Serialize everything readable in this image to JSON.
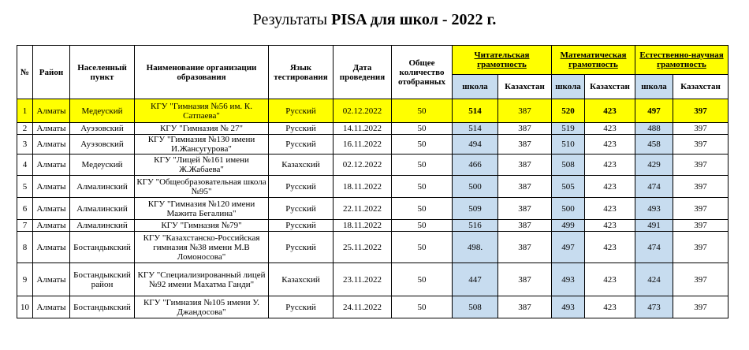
{
  "title": {
    "prefix": "Результаты ",
    "bold": "PISA для школ - 2022 г."
  },
  "headers": {
    "num": "№",
    "district": "Район",
    "locality": "Населенный пункт",
    "org": "Наименование организации образования",
    "lang": "Язык тестирования",
    "date": "Дата проведения",
    "total": "Общее количество отобранных",
    "reading": "Читательская грамотность",
    "math": "Математическая грамотность",
    "science": "Естественно-научная грамотность",
    "school": "школа",
    "kz": "Казахстан"
  },
  "rows": [
    {
      "n": "1",
      "city": "Алматы",
      "district": "Медеуский",
      "org": "КГУ \"Гимназия №56 им. К. Сатпаева\"",
      "lang": "Русский",
      "date": "02.12.2022",
      "total": "50",
      "r1": "514",
      "r2": "387",
      "m1": "520",
      "m2": "423",
      "s1": "497",
      "s2": "397"
    },
    {
      "n": "2",
      "city": "Алматы",
      "district": "Ауэзовский",
      "org": "КГУ \"Гимназия № 27\"",
      "lang": "Русский",
      "date": "14.11.2022",
      "total": "50",
      "r1": "514",
      "r2": "387",
      "m1": "519",
      "m2": "423",
      "s1": "488",
      "s2": "397"
    },
    {
      "n": "3",
      "city": "Алматы",
      "district": "Ауэзовский",
      "org": "КГУ \"Гимназия №130 имени И.Жансугурова\"",
      "lang": "Русский",
      "date": "16.11.2022",
      "total": "50",
      "r1": "494",
      "r2": "387",
      "m1": "510",
      "m2": "423",
      "s1": "458",
      "s2": "397"
    },
    {
      "n": "4",
      "city": "Алматы",
      "district": "Медеуский",
      "org": "КГУ \"Лицей №161 имени Ж.Жабаева\"",
      "lang": "Казахский",
      "date": "02.12.2022",
      "total": "50",
      "r1": "466",
      "r2": "387",
      "m1": "508",
      "m2": "423",
      "s1": "429",
      "s2": "397"
    },
    {
      "n": "5",
      "city": "Алматы",
      "district": "Алмалинский",
      "org": "КГУ \"Общеобразовательная школа №95\"",
      "lang": "Русский",
      "date": "18.11.2022",
      "total": "50",
      "r1": "500",
      "r2": "387",
      "m1": "505",
      "m2": "423",
      "s1": "474",
      "s2": "397"
    },
    {
      "n": "6",
      "city": "Алматы",
      "district": "Алмалинский",
      "org": "КГУ \"Гимназия №120 имени Мажита Бегалина\"",
      "lang": "Русский",
      "date": "22.11.2022",
      "total": "50",
      "r1": "509",
      "r2": "387",
      "m1": "500",
      "m2": "423",
      "s1": "493",
      "s2": "397"
    },
    {
      "n": "7",
      "city": "Алматы",
      "district": "Алмалинский",
      "org": "КГУ \"Гимназия №79\"",
      "lang": "Русский",
      "date": "18.11.2022",
      "total": "50",
      "r1": "516",
      "r2": "387",
      "m1": "499",
      "m2": "423",
      "s1": "491",
      "s2": "397"
    },
    {
      "n": "8",
      "city": "Алматы",
      "district": "Бостандыкский",
      "org": "КГУ \"Казахстанско-Российская гимназия №38 имени М.В Ломоносова\"",
      "lang": "Русский",
      "date": "25.11.2022",
      "total": "50",
      "r1": "498.",
      "r2": "387",
      "m1": "497",
      "m2": "423",
      "s1": "474",
      "s2": "397"
    },
    {
      "n": "9",
      "city": "Алматы",
      "district": "Бостандыкский район",
      "org": "КГУ \"Специализированный лицей №92 имени Махатма Ганди\"",
      "lang": "Казахский",
      "date": "23.11.2022",
      "total": "50",
      "r1": "447",
      "r2": "387",
      "m1": "493",
      "m2": "423",
      "s1": "424",
      "s2": "397"
    },
    {
      "n": "10",
      "city": "Алматы",
      "district": "Бостандыкский",
      "org": "КГУ \"Гимназия №105 имени У. Джандосова\"",
      "lang": "Русский",
      "date": "24.11.2022",
      "total": "50",
      "r1": "508",
      "r2": "387",
      "m1": "493",
      "m2": "423",
      "s1": "473",
      "s2": "397"
    }
  ]
}
